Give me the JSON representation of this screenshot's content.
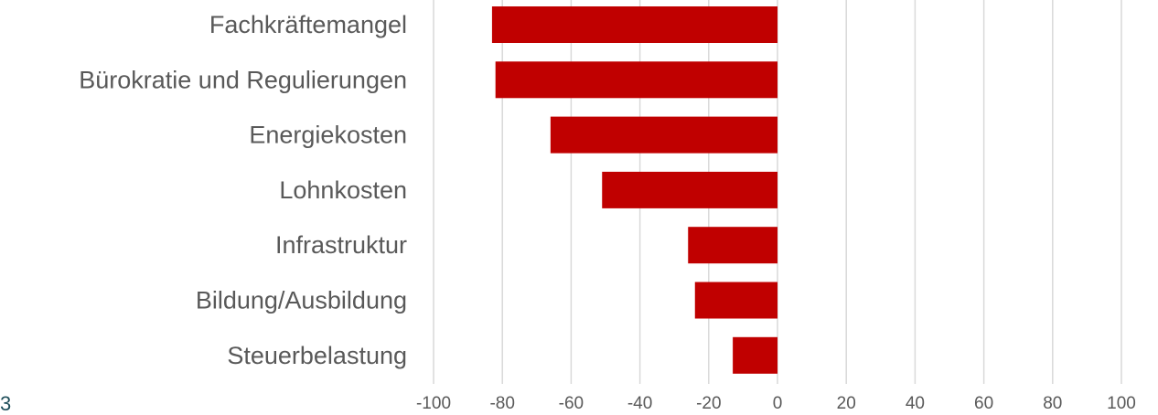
{
  "chart_data": {
    "type": "bar",
    "orientation": "horizontal",
    "categories": [
      "Fachkräftemangel",
      "Bürokratie und Regulierungen",
      "Energiekosten",
      "Lohnkosten",
      "Infrastruktur",
      "Bildung/Ausbildung",
      "Steuerbelastung"
    ],
    "values": [
      -83,
      -82,
      -66,
      -51,
      -26,
      -24,
      -13
    ],
    "xlim": [
      -100,
      100
    ],
    "xticks": [
      "-100",
      "-80",
      "-60",
      "-40",
      "-20",
      "0",
      "20",
      "40",
      "60",
      "80",
      "100"
    ],
    "grid": "vertical",
    "bar_color": "#c00000",
    "title": "",
    "xlabel": "",
    "ylabel": ""
  },
  "page_number": "3"
}
